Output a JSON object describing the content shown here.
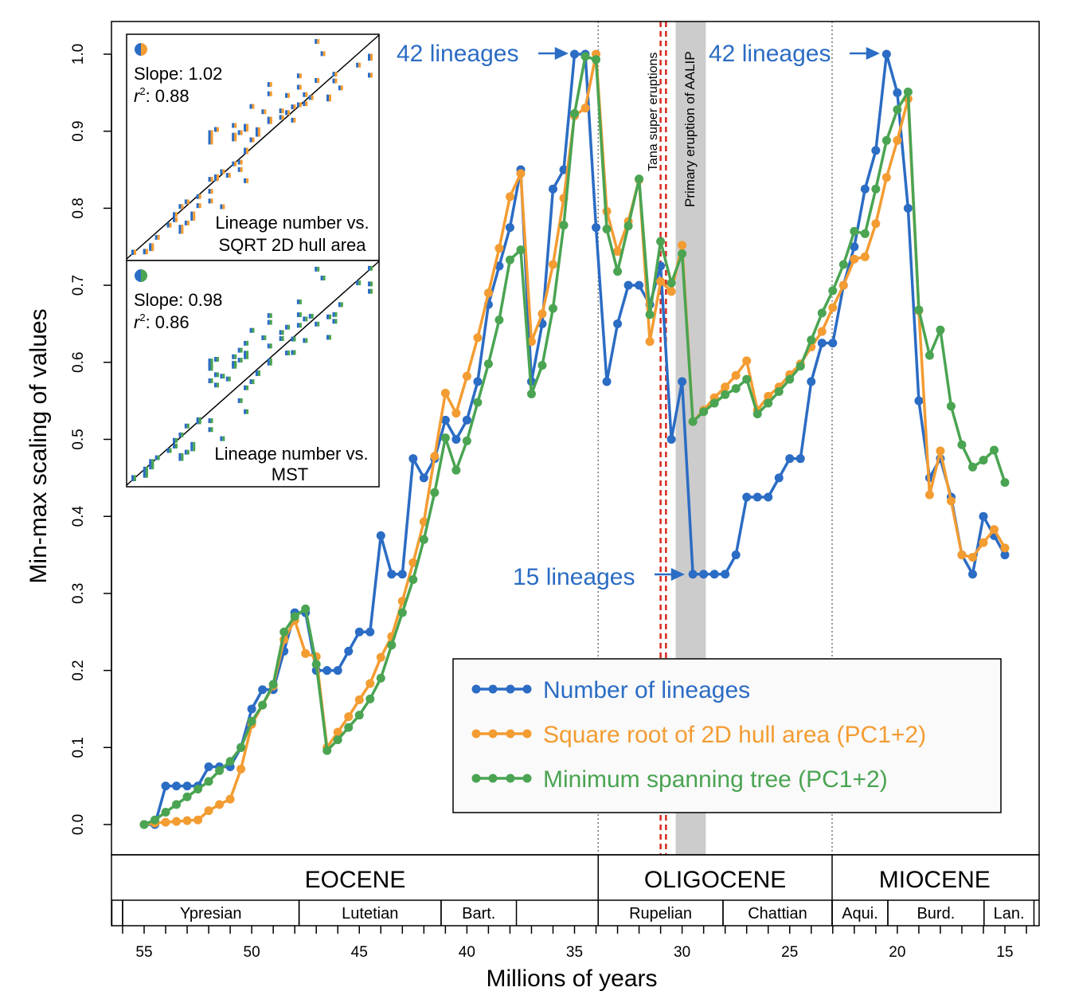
{
  "chart_data": {
    "type": "line",
    "xlabel": "Millions of years",
    "ylabel": "Min-max scaling of values",
    "xlim": [
      56.5,
      13.5
    ],
    "ylim": [
      -0.03,
      1.04
    ],
    "x_reversed": true,
    "xticks": [
      55,
      50,
      45,
      40,
      35,
      30,
      25,
      20,
      15
    ],
    "yticks": [
      "0.0",
      "0.1",
      "0.2",
      "0.3",
      "0.4",
      "0.5",
      "0.6",
      "0.7",
      "0.8",
      "0.9",
      "1.0"
    ],
    "grid": false,
    "legend_position": "bottom-right",
    "x": [
      55,
      54.5,
      54,
      53.5,
      53,
      52.5,
      52,
      51.5,
      51,
      50.5,
      50,
      49.5,
      49,
      48.5,
      48,
      47.5,
      47,
      46.5,
      46,
      45.5,
      45,
      44.5,
      44,
      43.5,
      43,
      42.5,
      42,
      41.5,
      41,
      40.5,
      40,
      39.5,
      39,
      38.5,
      38,
      37.5,
      37,
      36.5,
      36,
      35.5,
      35,
      34.5,
      34,
      33.5,
      33,
      32.5,
      32,
      31.5,
      31,
      30.5,
      30,
      29.5,
      29,
      28.5,
      28,
      27.5,
      27,
      26.5,
      26,
      25.5,
      25,
      24.5,
      24,
      23.5,
      23,
      22.5,
      22,
      21.5,
      21,
      20.5,
      20,
      19.5,
      19,
      18.5,
      18,
      17.5,
      17,
      16.5,
      16,
      15.5,
      15
    ],
    "series": [
      {
        "name": "Number of lineages",
        "color": "#2b6cc4",
        "values": [
          0,
          0,
          0.05,
          0.05,
          0.05,
          0.05,
          0.075,
          0.075,
          0.075,
          0.1,
          0.15,
          0.175,
          0.175,
          0.225,
          0.275,
          0.275,
          0.2,
          0.2,
          0.2,
          0.225,
          0.25,
          0.25,
          0.375,
          0.325,
          0.325,
          0.475,
          0.45,
          0.475,
          0.525,
          0.5,
          0.525,
          0.575,
          0.675,
          0.725,
          0.775,
          0.85,
          0.575,
          0.65,
          0.825,
          0.85,
          1.0,
          1.0,
          0.775,
          0.575,
          0.65,
          0.7,
          0.7,
          0.675,
          0.725,
          0.5,
          0.575,
          0.325,
          0.325,
          0.325,
          0.325,
          0.35,
          0.425,
          0.425,
          0.425,
          0.45,
          0.475,
          0.475,
          0.575,
          0.625,
          0.625,
          0.7,
          0.75,
          0.825,
          0.875,
          1.0,
          0.95,
          0.8,
          0.55,
          0.45,
          0.475,
          0.425,
          0.35,
          0.325,
          0.4,
          0.375,
          0.35
        ]
      },
      {
        "name": "Square root of 2D hull area (PC1+2)",
        "color": "#f39c32",
        "values": [
          0,
          0.002,
          0.003,
          0.004,
          0.005,
          0.006,
          0.018,
          0.026,
          0.033,
          0.072,
          0.13,
          0.155,
          0.18,
          0.24,
          0.265,
          0.222,
          0.218,
          0.1,
          0.12,
          0.14,
          0.162,
          0.183,
          0.217,
          0.244,
          0.29,
          0.34,
          0.393,
          0.478,
          0.56,
          0.534,
          0.582,
          0.632,
          0.69,
          0.748,
          0.815,
          0.845,
          0.627,
          0.663,
          0.727,
          0.813,
          0.92,
          0.93,
          1.0,
          0.796,
          0.744,
          0.783,
          0.837,
          0.627,
          0.705,
          0.692,
          0.752,
          0.523,
          0.538,
          0.554,
          0.568,
          0.583,
          0.602,
          0.538,
          0.556,
          0.568,
          0.584,
          0.598,
          0.62,
          0.64,
          0.671,
          0.7,
          0.734,
          0.737,
          0.78,
          0.84,
          0.888,
          0.942,
          0.667,
          0.428,
          0.485,
          0.42,
          0.35,
          0.347,
          0.366,
          0.383,
          0.359
        ]
      },
      {
        "name": "Minimum spanning tree (PC1+2)",
        "color": "#4aa452",
        "values": [
          0,
          0.006,
          0.016,
          0.026,
          0.036,
          0.046,
          0.056,
          0.07,
          0.082,
          0.1,
          0.134,
          0.155,
          0.182,
          0.25,
          0.27,
          0.28,
          0.208,
          0.096,
          0.11,
          0.126,
          0.142,
          0.163,
          0.19,
          0.233,
          0.275,
          0.318,
          0.37,
          0.431,
          0.502,
          0.46,
          0.498,
          0.548,
          0.598,
          0.655,
          0.733,
          0.746,
          0.559,
          0.596,
          0.67,
          0.778,
          0.923,
          0.997,
          0.993,
          0.773,
          0.718,
          0.777,
          0.838,
          0.662,
          0.757,
          0.703,
          0.741,
          0.523,
          0.536,
          0.547,
          0.558,
          0.566,
          0.578,
          0.533,
          0.547,
          0.562,
          0.578,
          0.595,
          0.629,
          0.664,
          0.693,
          0.727,
          0.77,
          0.767,
          0.825,
          0.888,
          0.928,
          0.951,
          0.668,
          0.609,
          0.642,
          0.543,
          0.493,
          0.464,
          0.473,
          0.486,
          0.444
        ]
      }
    ],
    "annotations": {
      "peak1": "42 lineages",
      "peak2": "42 lineages",
      "trough": "15 lineages",
      "tana": "Tana super eruptions",
      "aalip": "Primary eruption of AALIP"
    },
    "boundaries_ma": [
      33.9,
      23.03
    ],
    "tana_ma": [
      31.0,
      30.75
    ],
    "aalip_band_ma": [
      30.3,
      28.9
    ],
    "insets": [
      {
        "slope": "Slope: 1.02",
        "r2_label": "r",
        "r2_value": ": 0.88",
        "label1": "Lineage number vs.",
        "label2": "SQRT 2D hull area",
        "series_pair": [
          0,
          1
        ]
      },
      {
        "slope": "Slope: 0.98",
        "r2_label": "r",
        "r2_value": ": 0.86",
        "label1": "Lineage number vs.",
        "label2": "MST",
        "series_pair": [
          0,
          2
        ]
      }
    ],
    "epochs": [
      {
        "name": "EOCENE",
        "start": 56,
        "end": 33.9
      },
      {
        "name": "OLIGOCENE",
        "start": 33.9,
        "end": 23.03
      },
      {
        "name": "MIOCENE",
        "start": 23.03,
        "end": 13.5
      }
    ],
    "stages": [
      {
        "name": "",
        "start": 56.5,
        "end": 56
      },
      {
        "name": "Ypresian",
        "start": 56,
        "end": 47.8
      },
      {
        "name": "Lutetian",
        "start": 47.8,
        "end": 41.2
      },
      {
        "name": "Bart.",
        "start": 41.2,
        "end": 37.7
      },
      {
        "name": "Rupelian",
        "start": 33.9,
        "end": 28.1
      },
      {
        "name": "Chattian",
        "start": 28.1,
        "end": 23.03
      },
      {
        "name": "Aqui.",
        "start": 23.03,
        "end": 20.44
      },
      {
        "name": "Burd.",
        "start": 20.44,
        "end": 15.97
      },
      {
        "name": "Lan.",
        "start": 15.97,
        "end": 13.65
      }
    ]
  }
}
